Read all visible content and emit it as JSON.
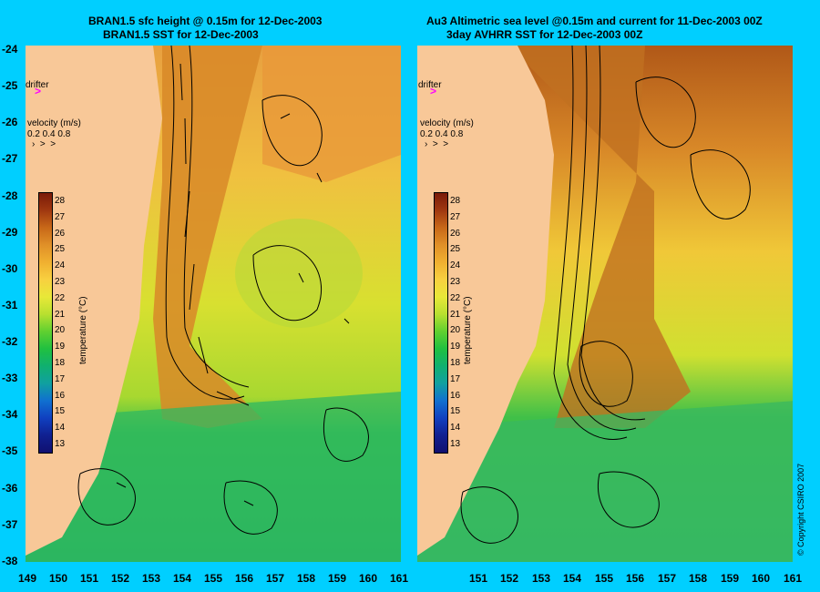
{
  "left_panel": {
    "title_line1": "BRAN1.5 sfc height @ 0.15m for 12-Dec-2003",
    "title_line2": "BRAN1.5 SST for 12-Dec-2003",
    "drifter_label": "drifter",
    "velocity_title": "velocity (m/s)",
    "velocity_values": "0.2 0.4 0.8",
    "colorbar_label": "temperature (°C)"
  },
  "right_panel": {
    "title_line1": "Au3 Altimetric sea level  @0.15m and current for 11-Dec-2003 00Z",
    "title_line2": "3day AVHRR SST for 12-Dec-2003 00Z",
    "drifter_label": "drifter",
    "velocity_title": "velocity (m/s)",
    "velocity_values": "0.2 0.4 0.8",
    "colorbar_label": "temperature (°C)"
  },
  "copyright": "© Copyright CSIRO 2007",
  "lat_labels": [
    "-24",
    "-25",
    "-26",
    "-27",
    "-28",
    "-29",
    "-30",
    "-31",
    "-32",
    "-33",
    "-34",
    "-35",
    "-36",
    "-37",
    "-38"
  ],
  "lon_labels_left": [
    "149",
    "150",
    "151",
    "152",
    "153",
    "154",
    "155",
    "156",
    "157",
    "158",
    "159",
    "160",
    "161"
  ],
  "lon_labels_right": [
    "151",
    "152",
    "153",
    "154",
    "155",
    "156",
    "157",
    "158",
    "159",
    "160",
    "161"
  ],
  "colorbar_ticks": [
    "28",
    "27",
    "26",
    "25",
    "24",
    "23",
    "22",
    "21",
    "20",
    "19",
    "18",
    "17",
    "16",
    "15",
    "14",
    "13"
  ],
  "colorbar_colors": [
    "#7a1a08",
    "#a03810",
    "#c86818",
    "#e09028",
    "#f0b030",
    "#f8d040",
    "#e8e838",
    "#b8e030",
    "#60d030",
    "#20c040",
    "#10b070",
    "#10a0a0",
    "#1070d0",
    "#1040c0",
    "#102090",
    "#101070"
  ],
  "colors": {
    "background": "#00cfff",
    "land": "#f8c898",
    "drifter": "#ff00ff"
  }
}
